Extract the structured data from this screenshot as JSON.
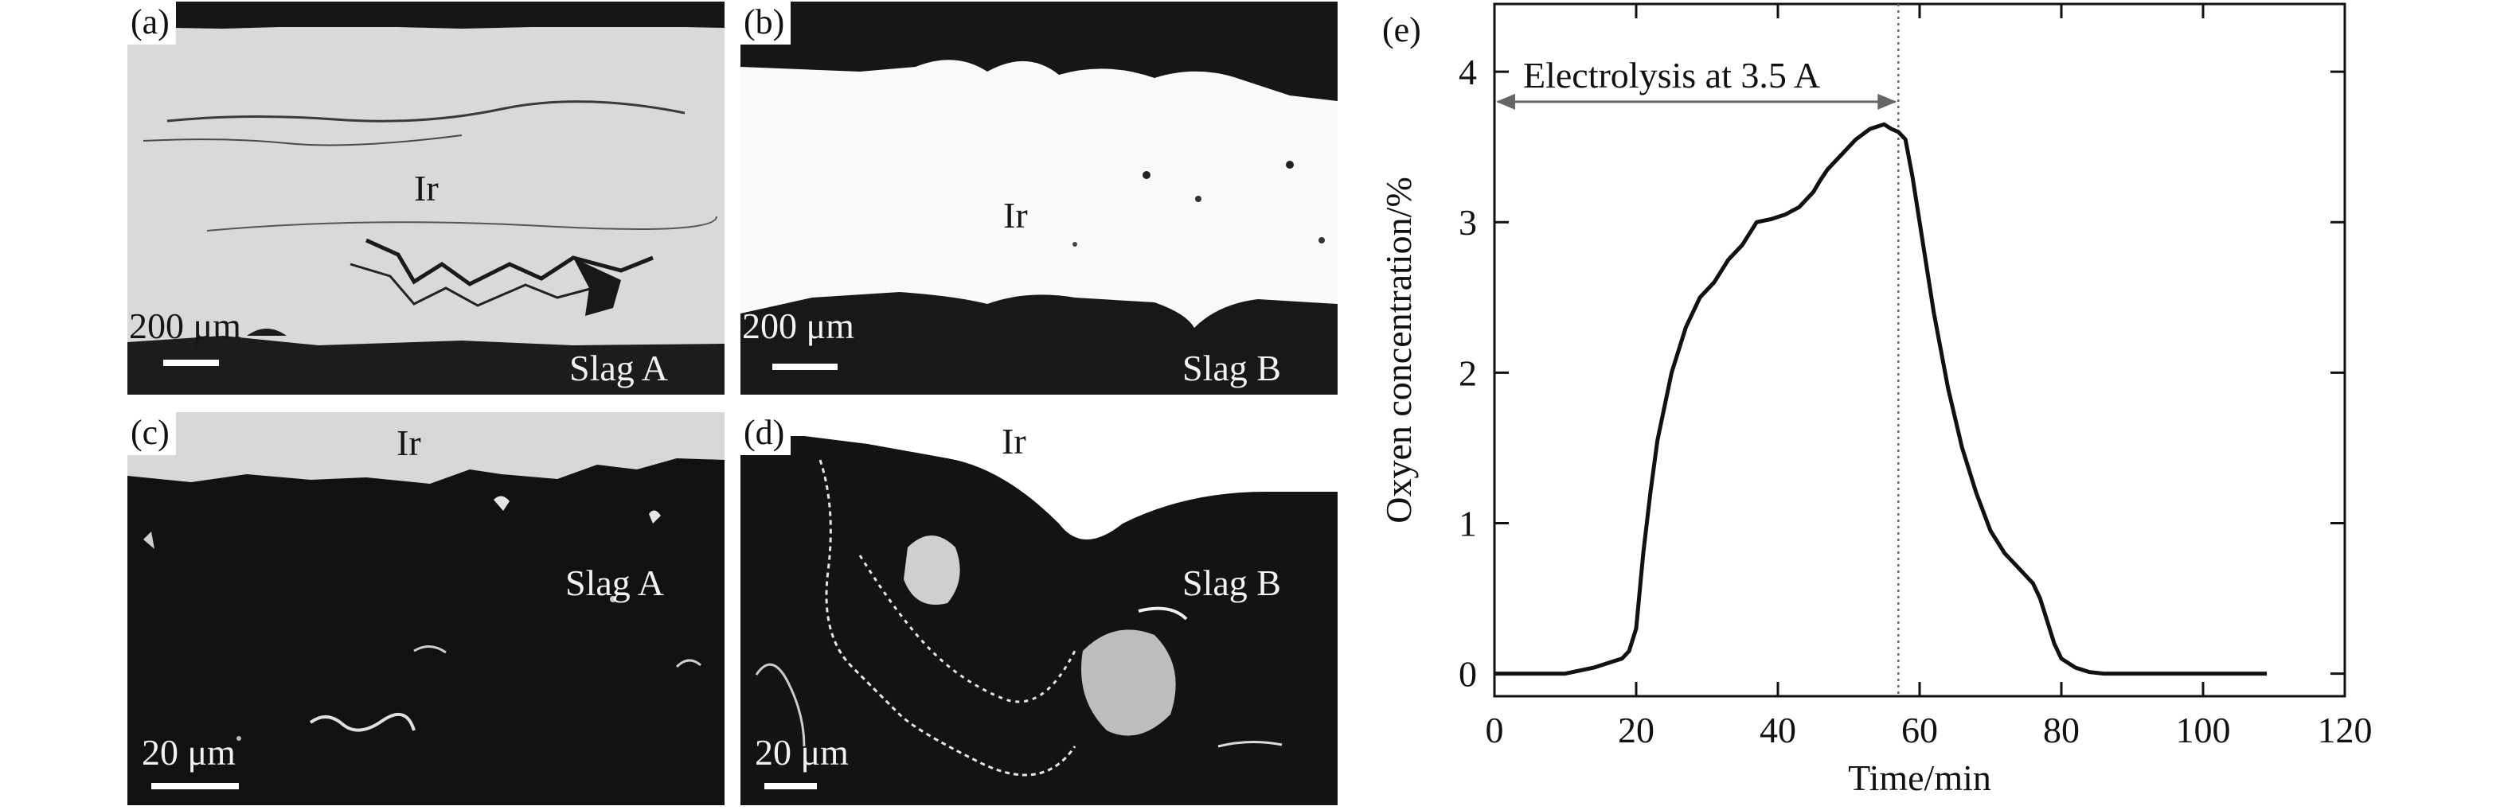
{
  "panels": {
    "a": {
      "label": "(a)",
      "metal": "Ir",
      "slag": "Slag A",
      "scale": "200 μm"
    },
    "b": {
      "label": "(b)",
      "metal": "Ir",
      "slag": "Slag B",
      "scale": "200 μm"
    },
    "c": {
      "label": "(c)",
      "metal": "Ir",
      "slag": "Slag A",
      "scale": "20 μm"
    },
    "d": {
      "label": "(d)",
      "metal": "Ir",
      "slag": "Slag B",
      "scale": "20 μm"
    },
    "e": {
      "label": "(e)"
    }
  },
  "chart_data": {
    "type": "line",
    "title": "",
    "xlabel": "Time/min",
    "ylabel": "Oxyen concentration/%",
    "xlim": [
      0,
      120
    ],
    "ylim": [
      -0.15,
      4.45
    ],
    "xticks": [
      "0",
      "20",
      "40",
      "60",
      "80",
      "100",
      "120"
    ],
    "yticks": [
      "0",
      "1",
      "2",
      "3",
      "4"
    ],
    "grid": false,
    "annotation": {
      "text": "Electrolysis at 3.5 A",
      "arrow_from_x": 0,
      "arrow_to_x": 57,
      "arrow_y": 3.8,
      "dotted_line_x": 57
    },
    "series": [
      {
        "x": [
          0,
          10,
          14,
          18,
          19,
          20,
          21,
          22,
          23,
          25,
          27,
          29,
          31,
          33,
          35,
          37,
          39,
          41,
          43,
          45,
          46,
          47,
          49,
          51,
          53,
          55,
          56,
          57,
          58,
          59,
          60,
          62,
          64,
          66,
          68,
          70,
          72,
          74,
          76,
          77,
          78,
          79,
          80,
          82,
          84,
          86,
          88,
          90,
          100,
          109
        ],
        "values": [
          0,
          0,
          0.04,
          0.1,
          0.15,
          0.3,
          0.8,
          1.2,
          1.55,
          2.0,
          2.3,
          2.5,
          2.6,
          2.75,
          2.85,
          3.0,
          3.02,
          3.05,
          3.1,
          3.2,
          3.28,
          3.35,
          3.45,
          3.55,
          3.62,
          3.65,
          3.62,
          3.6,
          3.55,
          3.3,
          3.0,
          2.4,
          1.9,
          1.5,
          1.2,
          0.95,
          0.8,
          0.7,
          0.6,
          0.5,
          0.35,
          0.2,
          0.1,
          0.04,
          0.01,
          0,
          0,
          0,
          0,
          0
        ]
      }
    ]
  }
}
